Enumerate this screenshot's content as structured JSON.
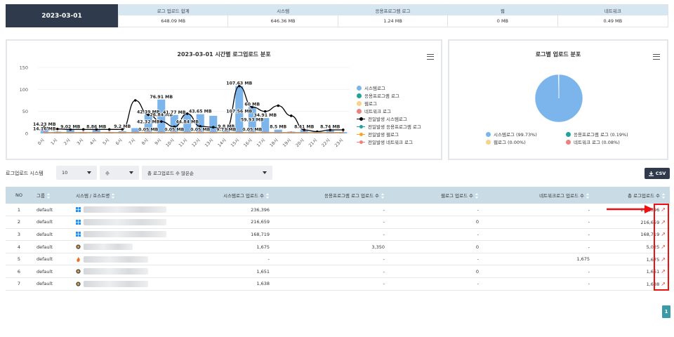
{
  "summary": {
    "date": "2023-03-01",
    "columns": [
      {
        "label": "로그 업로드 합계",
        "value": "648.09 MB"
      },
      {
        "label": "시스템",
        "value": "646.36 MB"
      },
      {
        "label": "응용프로그램 로그",
        "value": "1.24 MB"
      },
      {
        "label": "웹",
        "value": "0 MB"
      },
      {
        "label": "네트워크",
        "value": "0.49 MB"
      }
    ]
  },
  "bar_panel": {
    "title": "2023-03-01 시간별 로그업로드 분포",
    "legend": [
      {
        "label": "시스템로그",
        "color": "#7cb5ec",
        "kind": "dot"
      },
      {
        "label": "응용프로그램 로그",
        "color": "#20a39a",
        "kind": "dot"
      },
      {
        "label": "웹로그",
        "color": "#f7d28a",
        "kind": "dot"
      },
      {
        "label": "네트워크 로그",
        "color": "#f07f7f",
        "kind": "dot"
      },
      {
        "label": "전일발생 시스템로그",
        "color": "#000000",
        "kind": "line"
      },
      {
        "label": "전일발생 응용프로그램 로그",
        "color": "#20a39a",
        "kind": "line"
      },
      {
        "label": "전일발생 웹로그",
        "color": "#f5a623",
        "kind": "line"
      },
      {
        "label": "전일발생 네트워크 로그",
        "color": "#f07f7f",
        "kind": "line"
      }
    ]
  },
  "pie_panel": {
    "title": "로그별 업로드 분포",
    "legend": [
      {
        "label": "시스템로그 (99.73%)",
        "color": "#7cb5ec"
      },
      {
        "label": "응용프로그램 로그 (0.19%)",
        "color": "#20a39a"
      },
      {
        "label": "웹로그 (0.00%)",
        "color": "#f7d28a"
      },
      {
        "label": "네트워크 로그 (0.08%)",
        "color": "#f07f7f"
      }
    ]
  },
  "chart_data": [
    {
      "type": "bar",
      "title": "2023-03-01 시간별 로그업로드 분포",
      "ylim": [
        0,
        150
      ],
      "yticks": [
        0,
        50,
        100,
        150
      ],
      "categories": [
        "0시",
        "1시",
        "2시",
        "3시",
        "4시",
        "5시",
        "6시",
        "7시",
        "8시",
        "9시",
        "10시",
        "11시",
        "12시",
        "13시",
        "14시",
        "15시",
        "16시",
        "17시",
        "18시",
        "19시",
        "20시",
        "21시",
        "22시",
        "23시"
      ],
      "series": [
        {
          "name": "시스템로그",
          "kind": "bar",
          "color": "#7cb5ec",
          "values": [
            14.23,
            4,
            9.02,
            3,
            8.86,
            3,
            5,
            12,
            42.32,
            76.91,
            41.77,
            43,
            43.65,
            40,
            9.8,
            107.63,
            60,
            34.91,
            8.5,
            4,
            8.41,
            3,
            8.74,
            3
          ]
        },
        {
          "name": "전일발생 시스템로그",
          "kind": "line",
          "color": "#000000",
          "values": [
            14.16,
            10,
            9,
            9,
            9,
            9,
            9.2,
            75,
            42.39,
            26.84,
            15,
            44.84,
            16,
            14,
            9.73,
            107.56,
            59.93,
            50,
            63,
            40,
            8,
            4,
            8,
            8
          ]
        }
      ],
      "labels": [
        {
          "text": "14.23 MB",
          "x": 0,
          "y": 14.23
        },
        {
          "text": "14.16 MB",
          "x": 0,
          "y": 4
        },
        {
          "text": "9.02 MB",
          "x": 2,
          "y": 9.02
        },
        {
          "text": "8.86 MB",
          "x": 4,
          "y": 8.86
        },
        {
          "text": "9.2 MB",
          "x": 6,
          "y": 9.2
        },
        {
          "text": "42.39 MB",
          "x": 8,
          "y": 42.39
        },
        {
          "text": "42.32 MB",
          "x": 8,
          "y": 20
        },
        {
          "text": "0.05 MB",
          "x": 8,
          "y": 2
        },
        {
          "text": "76.91 MB",
          "x": 9,
          "y": 76.91
        },
        {
          "text": "26.84 MB",
          "x": 9,
          "y": 36
        },
        {
          "text": "41.77 MB",
          "x": 10,
          "y": 41.77
        },
        {
          "text": "0.05 MB",
          "x": 10,
          "y": 2
        },
        {
          "text": "44.84 MB",
          "x": 11,
          "y": 20
        },
        {
          "text": "43.65 MB",
          "x": 12,
          "y": 43.65
        },
        {
          "text": "0.05 MB",
          "x": 12,
          "y": 2
        },
        {
          "text": "9.8 MB",
          "x": 14,
          "y": 9.8
        },
        {
          "text": "9.73 MB",
          "x": 14,
          "y": 2
        },
        {
          "text": "107.63 MB",
          "x": 15,
          "y": 107.63
        },
        {
          "text": "107.56 MB",
          "x": 15,
          "y": 44
        },
        {
          "text": "60 MB",
          "x": 16,
          "y": 60
        },
        {
          "text": "59.93 MB",
          "x": 16,
          "y": 25
        },
        {
          "text": "0.05 MB",
          "x": 16,
          "y": 2
        },
        {
          "text": "34.91 MB",
          "x": 17,
          "y": 34.91
        },
        {
          "text": "8.5 MB",
          "x": 18,
          "y": 8.5
        },
        {
          "text": "8.41 MB",
          "x": 20,
          "y": 8.41
        },
        {
          "text": "8.74 MB",
          "x": 22,
          "y": 8.74
        }
      ]
    },
    {
      "type": "pie",
      "title": "로그별 업로드 분포",
      "categories": [
        "시스템로그",
        "응용프로그램 로그",
        "웹로그",
        "네트워크 로그"
      ],
      "values": [
        99.73,
        0.19,
        0.0,
        0.08
      ],
      "colors": [
        "#7cb5ec",
        "#20a39a",
        "#f7d28a",
        "#f07f7f"
      ]
    }
  ],
  "filter": {
    "label": "로그업로드 시스템",
    "page_size": "10",
    "sort_field": "수",
    "sort_order": "총 로그업로드 수 많은순",
    "csv_label": "CSV"
  },
  "table": {
    "headers": [
      "NO",
      "그룹",
      "시스템 / 호스트명",
      "시스템로그 업로드 수",
      "응용프로그램 로그 업로드 수",
      "웹로그 업로드 수",
      "네트워크로그 업로드 수",
      "총 로그업로드 수"
    ],
    "rows": [
      {
        "no": "1",
        "group": "default",
        "os": "windows",
        "sys": "236,396",
        "app": "-",
        "web": "-",
        "net": "-",
        "total": "236,396"
      },
      {
        "no": "2",
        "group": "default",
        "os": "windows",
        "sys": "216,659",
        "app": "-",
        "web": "0",
        "net": "-",
        "total": "216,659"
      },
      {
        "no": "3",
        "group": "default",
        "os": "windows",
        "sys": "168,719",
        "app": "-",
        "web": "-",
        "net": "-",
        "total": "168,719"
      },
      {
        "no": "4",
        "group": "default",
        "os": "linux",
        "sys": "1,675",
        "app": "3,350",
        "web": "0",
        "net": "-",
        "total": "5,025"
      },
      {
        "no": "5",
        "group": "default",
        "os": "firewall",
        "sys": "-",
        "app": "-",
        "web": "-",
        "net": "1,675",
        "total": "1,675"
      },
      {
        "no": "6",
        "group": "default",
        "os": "linux",
        "sys": "1,651",
        "app": "-",
        "web": "0",
        "net": "-",
        "total": "1,651"
      },
      {
        "no": "7",
        "group": "default",
        "os": "linux",
        "sys": "1,638",
        "app": "-",
        "web": "-",
        "net": "-",
        "total": "1,638"
      }
    ]
  },
  "pagination": {
    "current": "1"
  }
}
